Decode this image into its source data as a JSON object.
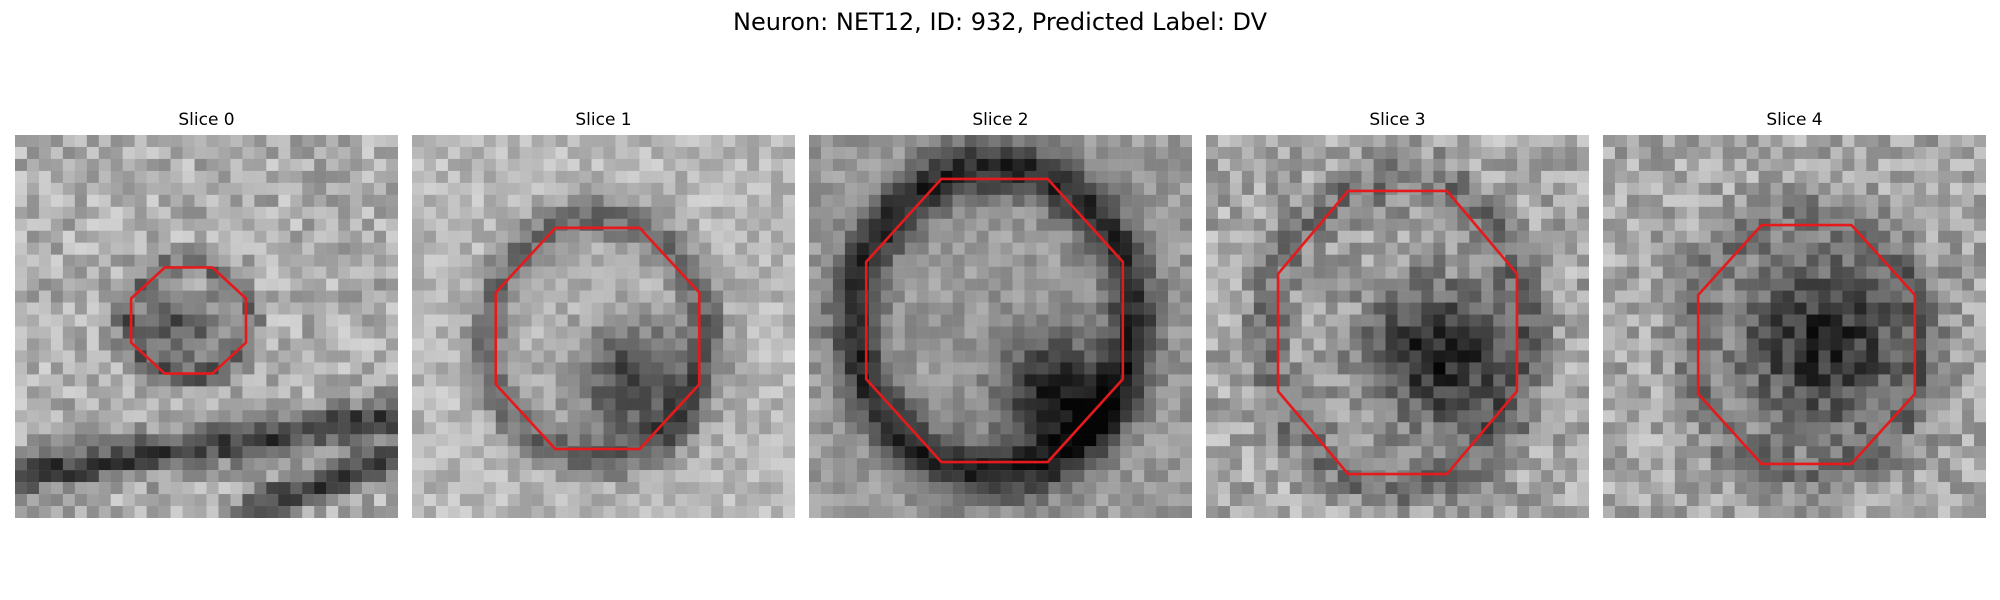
{
  "figure": {
    "title": "Neuron: NET12, ID: 932, Predicted Label: DV",
    "contour_color": "#e41a1c"
  },
  "panels": [
    {
      "title": "Slice 0"
    },
    {
      "title": "Slice 1"
    },
    {
      "title": "Slice 2"
    },
    {
      "title": "Slice 3"
    },
    {
      "title": "Slice 4"
    }
  ]
}
